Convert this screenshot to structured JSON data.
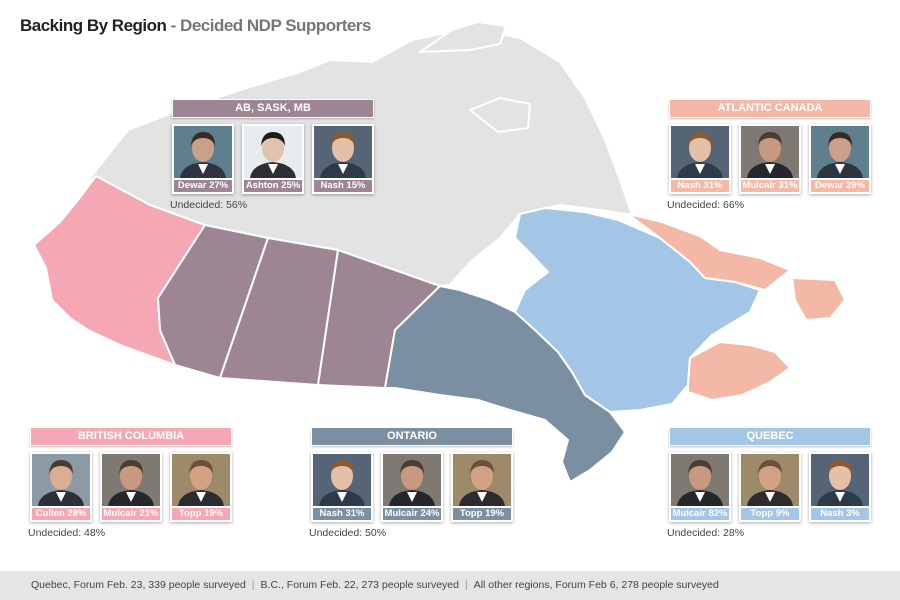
{
  "title": {
    "main": "Backing By Region",
    "sub": "- Decided NDP Supporters"
  },
  "colors": {
    "prairies": "#9d8594",
    "atlantic": "#f3b8a6",
    "bc": "#f5a8b3",
    "ontario": "#7b8fa3",
    "quebec": "#a3c6e6",
    "north": "#e3e3e3"
  },
  "regions": [
    {
      "id": "prairies",
      "label": "AB, SASK, MB",
      "color": "#9d8594",
      "undecided": "Undecided: 56%",
      "candidates": [
        {
          "name": "Dewar",
          "pct": "27%",
          "icon": "dewar-photo-icon",
          "bg": "#5f7f8f",
          "skin": "#caa08a",
          "hair": "#3a2a22",
          "suit": "#2e3440"
        },
        {
          "name": "Ashton",
          "pct": "25%",
          "icon": "ashton-photo-icon",
          "bg": "#e9ecef",
          "skin": "#e2c2ae",
          "hair": "#1e1a18",
          "suit": "#2f2f33"
        },
        {
          "name": "Nash",
          "pct": "15%",
          "icon": "nash-photo-icon",
          "bg": "#556575",
          "skin": "#e6c0a6",
          "hair": "#8a5a33",
          "suit": "#2d3a4a"
        }
      ]
    },
    {
      "id": "atlantic",
      "label": "ATLANTIC CANADA",
      "color": "#f3b8a6",
      "undecided": "Undecided: 66%",
      "candidates": [
        {
          "name": "Nash",
          "pct": "31%",
          "icon": "nash-photo-icon",
          "bg": "#556575",
          "skin": "#e6c0a6",
          "hair": "#8a5a33",
          "suit": "#2d3a4a"
        },
        {
          "name": "Mulcair",
          "pct": "31%",
          "icon": "mulcair-photo-icon",
          "bg": "#7e7a73",
          "skin": "#c79a80",
          "hair": "#4a3e34",
          "suit": "#24272b"
        },
        {
          "name": "Dewar",
          "pct": "29%",
          "icon": "dewar-photo-icon",
          "bg": "#5f7f8f",
          "skin": "#caa08a",
          "hair": "#3a2a22",
          "suit": "#2e3440"
        }
      ]
    },
    {
      "id": "bc",
      "label": "BRITISH COLUMBIA",
      "color": "#f5a8b3",
      "undecided": "Undecided: 48%",
      "candidates": [
        {
          "name": "Cullen",
          "pct": "28%",
          "icon": "cullen-photo-icon",
          "bg": "#8c9aa6",
          "skin": "#d9ae94",
          "hair": "#4b3a2e",
          "suit": "#2a2f38"
        },
        {
          "name": "Mulcair",
          "pct": "21%",
          "icon": "mulcair-photo-icon",
          "bg": "#7e7a73",
          "skin": "#c79a80",
          "hair": "#4a3e34",
          "suit": "#24272b"
        },
        {
          "name": "Topp",
          "pct": "19%",
          "icon": "topp-photo-icon",
          "bg": "#9c8a6a",
          "skin": "#d3a184",
          "hair": "#6a5138",
          "suit": "#2c2c30"
        }
      ]
    },
    {
      "id": "ontario",
      "label": "ONTARIO",
      "color": "#7b8fa3",
      "undecided": "Undecided: 50%",
      "candidates": [
        {
          "name": "Nash",
          "pct": "31%",
          "icon": "nash-photo-icon",
          "bg": "#556575",
          "skin": "#e6c0a6",
          "hair": "#8a5a33",
          "suit": "#2d3a4a"
        },
        {
          "name": "Mulcair",
          "pct": "24%",
          "icon": "mulcair-photo-icon",
          "bg": "#7e7a73",
          "skin": "#c79a80",
          "hair": "#4a3e34",
          "suit": "#24272b"
        },
        {
          "name": "Topp",
          "pct": "19%",
          "icon": "topp-photo-icon",
          "bg": "#9c8a6a",
          "skin": "#d3a184",
          "hair": "#6a5138",
          "suit": "#2c2c30"
        }
      ]
    },
    {
      "id": "quebec",
      "label": "QUEBEC",
      "color": "#a3c6e6",
      "undecided": "Undecided: 28%",
      "candidates": [
        {
          "name": "Mulcair",
          "pct": "82%",
          "icon": "mulcair-photo-icon",
          "bg": "#7e7a73",
          "skin": "#c79a80",
          "hair": "#4a3e34",
          "suit": "#24272b"
        },
        {
          "name": "Topp",
          "pct": "9%",
          "icon": "topp-photo-icon",
          "bg": "#9c8a6a",
          "skin": "#d3a184",
          "hair": "#6a5138",
          "suit": "#2c2c30"
        },
        {
          "name": "Nash",
          "pct": "3%",
          "icon": "nash-photo-icon",
          "bg": "#556575",
          "skin": "#e6c0a6",
          "hair": "#8a5a33",
          "suit": "#2d3a4a"
        }
      ]
    }
  ],
  "footer": [
    "Quebec, Forum Feb. 23, 339 people surveyed",
    "B.C., Forum Feb. 22, 273 people surveyed",
    "All other regions, Forum Feb 6, 278 people surveyed"
  ]
}
